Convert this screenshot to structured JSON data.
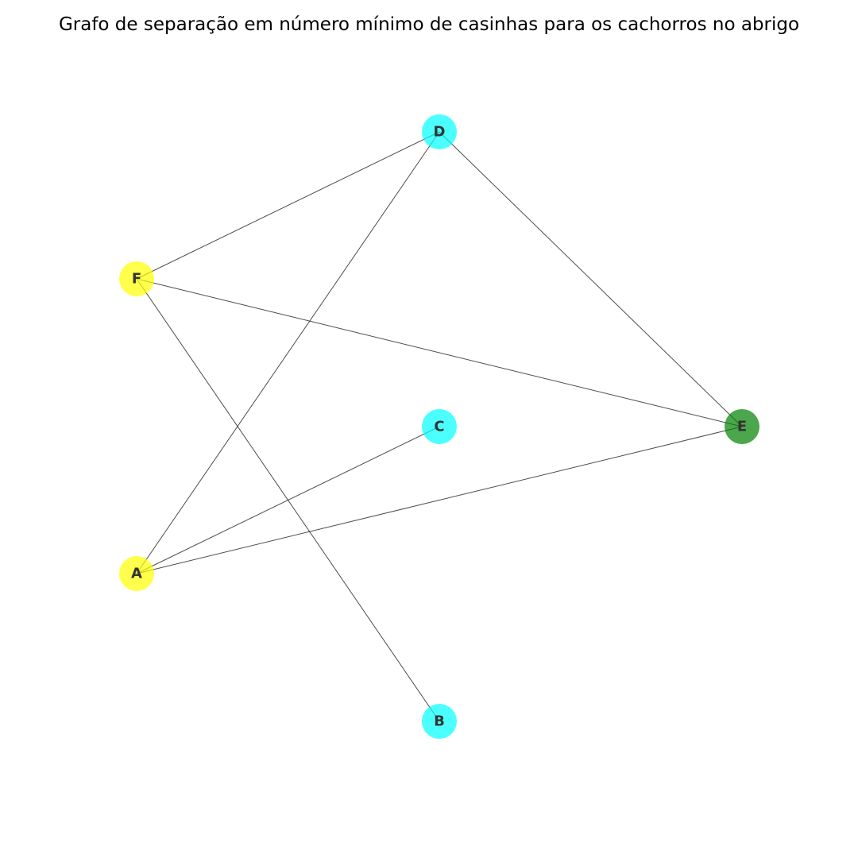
{
  "title": "Grafo de separação em número mínimo de casinhas para os cachorros no abrigo",
  "graph": {
    "nodes": [
      {
        "id": "D",
        "label": "D",
        "color": "#00ffff"
      },
      {
        "id": "F",
        "label": "F",
        "color": "#ffff00"
      },
      {
        "id": "C",
        "label": "C",
        "color": "#00ffff"
      },
      {
        "id": "E",
        "label": "E",
        "color": "#008000"
      },
      {
        "id": "A",
        "label": "A",
        "color": "#ffff00"
      },
      {
        "id": "B",
        "label": "B",
        "color": "#00ffff"
      }
    ],
    "edges": [
      [
        "D",
        "F"
      ],
      [
        "D",
        "A"
      ],
      [
        "D",
        "E"
      ],
      [
        "F",
        "E"
      ],
      [
        "F",
        "B"
      ],
      [
        "A",
        "C"
      ],
      [
        "A",
        "E"
      ]
    ],
    "node_opacity": 0.7,
    "edge_color": "#000000",
    "edge_opacity": 0.7
  }
}
